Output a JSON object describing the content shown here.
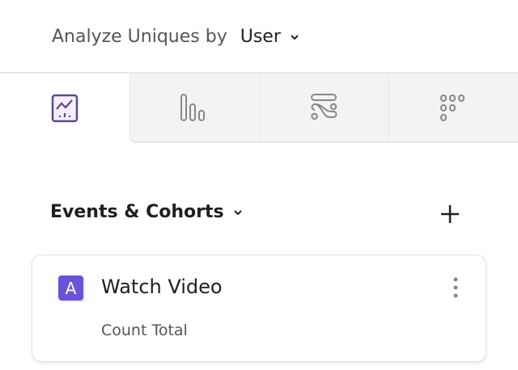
{
  "header": {
    "analyze_label": "Analyze Uniques by",
    "analyze_value": "User"
  },
  "tabs": [
    {
      "icon": "line-chart-icon",
      "active": true
    },
    {
      "icon": "bar-chart-icon",
      "active": false
    },
    {
      "icon": "flows-icon",
      "active": false
    },
    {
      "icon": "retention-grid-icon",
      "active": false
    }
  ],
  "section": {
    "title": "Events & Cohorts"
  },
  "events": [
    {
      "badge": "A",
      "name": "Watch Video",
      "measure": "Count Total"
    }
  ],
  "colors": {
    "accent": "#6a52d9",
    "icon_gray": "#888888"
  }
}
